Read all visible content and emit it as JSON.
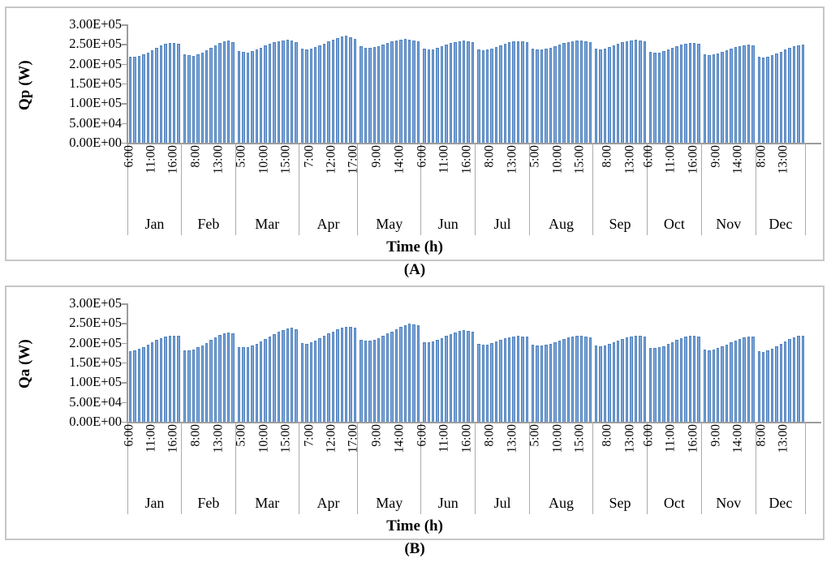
{
  "figure": {
    "caption_a": "(A)",
    "caption_b": "(B)"
  },
  "chart_data": [
    {
      "type": "bar",
      "title": "(A)",
      "ylabel": "Qp (W)",
      "xlabel": "Time (h)",
      "ylim": [
        0,
        300000
      ],
      "grid": false,
      "legend": "none",
      "bar_color": "#7CA6D9",
      "bar_edge_color": "#4F81BD",
      "y_tick_labels": [
        "3.00E+05",
        "2.50E+05",
        "2.00E+05",
        "1.50E+05",
        "1.00E+05",
        "5.00E+04",
        "0.00E+00"
      ],
      "months": [
        {
          "name": "Jan",
          "ticks": [
            [
              0,
              "6:00"
            ],
            [
              5,
              "11:00"
            ],
            [
              10,
              "16:00"
            ]
          ],
          "values": [
            216000,
            215000,
            217000,
            221000,
            226000,
            232000,
            238000,
            244000,
            249000,
            251000,
            250000,
            248000
          ]
        },
        {
          "name": "Feb",
          "ticks": [
            [
              3,
              "8:00"
            ],
            [
              8,
              "13:00"
            ]
          ],
          "values": [
            222000,
            219000,
            218000,
            221000,
            227000,
            233000,
            239000,
            245000,
            251000,
            255000,
            256000,
            253000
          ]
        },
        {
          "name": "Mar",
          "ticks": [
            [
              1,
              "5:00"
            ],
            [
              6,
              "10:00"
            ],
            [
              11,
              "15:00"
            ]
          ],
          "values": [
            231000,
            228000,
            227000,
            230000,
            234000,
            239000,
            244000,
            248000,
            252000,
            255000,
            257000,
            258000,
            256000,
            252000
          ]
        },
        {
          "name": "Apr",
          "ticks": [
            [
              2,
              "7:00"
            ],
            [
              7,
              "12:00"
            ],
            [
              12,
              "17:00"
            ]
          ],
          "values": [
            236000,
            234000,
            236000,
            240000,
            244000,
            249000,
            254000,
            259000,
            263000,
            267000,
            269000,
            265000,
            260000
          ]
        },
        {
          "name": "May",
          "ticks": [
            [
              4,
              "9:00"
            ],
            [
              9,
              "14:00"
            ]
          ],
          "values": [
            242000,
            239000,
            238000,
            240000,
            243000,
            247000,
            251000,
            254000,
            257000,
            259000,
            260000,
            259000,
            257000,
            254000
          ]
        },
        {
          "name": "Jun",
          "ticks": [
            [
              0,
              "6:00"
            ],
            [
              5,
              "11:00"
            ],
            [
              10,
              "16:00"
            ]
          ],
          "values": [
            236000,
            234000,
            235000,
            238000,
            242000,
            246000,
            250000,
            253000,
            255000,
            256000,
            255000,
            253000
          ]
        },
        {
          "name": "Jul",
          "ticks": [
            [
              3,
              "8:00"
            ],
            [
              8,
              "13:00"
            ]
          ],
          "values": [
            235000,
            233000,
            234000,
            237000,
            241000,
            245000,
            249000,
            252000,
            254000,
            255000,
            254000,
            252000
          ]
        },
        {
          "name": "Aug",
          "ticks": [
            [
              1,
              "5:00"
            ],
            [
              6,
              "10:00"
            ],
            [
              11,
              "15:00"
            ]
          ],
          "values": [
            237000,
            235000,
            234000,
            236000,
            239000,
            243000,
            246000,
            250000,
            252000,
            254000,
            256000,
            256000,
            255000,
            252000
          ]
        },
        {
          "name": "Sep",
          "ticks": [
            [
              3,
              "8:00"
            ],
            [
              8,
              "13:00"
            ]
          ],
          "values": [
            237000,
            235000,
            236000,
            240000,
            244000,
            248000,
            252000,
            255000,
            257000,
            258000,
            257000,
            255000
          ]
        },
        {
          "name": "Oct",
          "ticks": [
            [
              0,
              "6:00"
            ],
            [
              5,
              "11:00"
            ],
            [
              10,
              "16:00"
            ]
          ],
          "values": [
            228000,
            226000,
            227000,
            230000,
            234000,
            238000,
            242000,
            246000,
            249000,
            251000,
            250000,
            248000
          ]
        },
        {
          "name": "Nov",
          "ticks": [
            [
              3,
              "9:00"
            ],
            [
              8,
              "14:00"
            ]
          ],
          "values": [
            222000,
            220000,
            221000,
            224000,
            228000,
            232000,
            236000,
            240000,
            243000,
            245000,
            246000,
            244000
          ]
        },
        {
          "name": "Dec",
          "ticks": [
            [
              1,
              "8:00"
            ],
            [
              6,
              "13:00"
            ]
          ],
          "values": [
            216000,
            214000,
            215000,
            219000,
            224000,
            229000,
            234000,
            238000,
            242000,
            245000,
            246000
          ]
        }
      ]
    },
    {
      "type": "bar",
      "title": "(B)",
      "ylabel": "Qa (W)",
      "xlabel": "Time (h)",
      "ylim": [
        0,
        300000
      ],
      "grid": false,
      "legend": "none",
      "bar_color": "#7CA6D9",
      "bar_edge_color": "#4F81BD",
      "y_tick_labels": [
        "3.00E+05",
        "2.50E+05",
        "2.00E+05",
        "1.50E+05",
        "1.00E+05",
        "5.00E+04",
        "0.00E+00"
      ],
      "months": [
        {
          "name": "Jan",
          "ticks": [
            [
              0,
              "6:00"
            ],
            [
              5,
              "11:00"
            ],
            [
              10,
              "16:00"
            ]
          ],
          "values": [
            176000,
            179000,
            183000,
            188000,
            193000,
            199000,
            205000,
            210000,
            214000,
            216000,
            216000,
            215000
          ]
        },
        {
          "name": "Feb",
          "ticks": [
            [
              3,
              "8:00"
            ],
            [
              8,
              "13:00"
            ]
          ],
          "values": [
            179000,
            178000,
            181000,
            186000,
            192000,
            198000,
            205000,
            211000,
            217000,
            222000,
            224000,
            222000
          ]
        },
        {
          "name": "Mar",
          "ticks": [
            [
              1,
              "5:00"
            ],
            [
              6,
              "10:00"
            ],
            [
              11,
              "15:00"
            ]
          ],
          "values": [
            188000,
            186000,
            187000,
            191000,
            196000,
            202000,
            208000,
            214000,
            220000,
            226000,
            231000,
            235000,
            236000,
            233000
          ]
        },
        {
          "name": "Apr",
          "ticks": [
            [
              2,
              "7:00"
            ],
            [
              7,
              "12:00"
            ],
            [
              12,
              "17:00"
            ]
          ],
          "values": [
            198000,
            196000,
            199000,
            204000,
            209000,
            215000,
            221000,
            227000,
            232000,
            236000,
            238000,
            238000,
            236000
          ]
        },
        {
          "name": "May",
          "ticks": [
            [
              4,
              "9:00"
            ],
            [
              9,
              "14:00"
            ]
          ],
          "values": [
            206000,
            204000,
            203000,
            206000,
            210000,
            215000,
            221000,
            227000,
            233000,
            239000,
            243000,
            246000,
            245000,
            242000
          ]
        },
        {
          "name": "Jun",
          "ticks": [
            [
              0,
              "6:00"
            ],
            [
              5,
              "11:00"
            ],
            [
              10,
              "16:00"
            ]
          ],
          "values": [
            200000,
            199000,
            201000,
            205000,
            210000,
            215000,
            220000,
            225000,
            228000,
            230000,
            229000,
            227000
          ]
        },
        {
          "name": "Jul",
          "ticks": [
            [
              3,
              "8:00"
            ],
            [
              8,
              "13:00"
            ]
          ],
          "values": [
            195000,
            193000,
            194000,
            197000,
            201000,
            205000,
            209000,
            212000,
            214000,
            215000,
            214000,
            213000
          ]
        },
        {
          "name": "Aug",
          "ticks": [
            [
              1,
              "5:00"
            ],
            [
              6,
              "10:00"
            ],
            [
              11,
              "15:00"
            ]
          ],
          "values": [
            194000,
            192000,
            191000,
            193000,
            196000,
            200000,
            204000,
            208000,
            211000,
            213000,
            215000,
            215000,
            214000,
            212000
          ]
        },
        {
          "name": "Sep",
          "ticks": [
            [
              3,
              "8:00"
            ],
            [
              8,
              "13:00"
            ]
          ],
          "values": [
            191000,
            189000,
            191000,
            195000,
            199000,
            203000,
            207000,
            211000,
            214000,
            215000,
            215000,
            213000
          ]
        },
        {
          "name": "Oct",
          "ticks": [
            [
              0,
              "6:00"
            ],
            [
              5,
              "11:00"
            ],
            [
              10,
              "16:00"
            ]
          ],
          "values": [
            185000,
            184000,
            186000,
            190000,
            195000,
            200000,
            205000,
            210000,
            213000,
            216000,
            215000,
            214000
          ]
        },
        {
          "name": "Nov",
          "ticks": [
            [
              3,
              "9:00"
            ],
            [
              8,
              "14:00"
            ]
          ],
          "values": [
            180000,
            178000,
            180000,
            184000,
            189000,
            194000,
            199000,
            204000,
            208000,
            212000,
            214000,
            213000
          ]
        },
        {
          "name": "Dec",
          "ticks": [
            [
              1,
              "8:00"
            ],
            [
              6,
              "13:00"
            ]
          ],
          "values": [
            177000,
            175000,
            178000,
            183000,
            189000,
            195000,
            201000,
            207000,
            212000,
            216000,
            215000
          ]
        }
      ]
    }
  ]
}
